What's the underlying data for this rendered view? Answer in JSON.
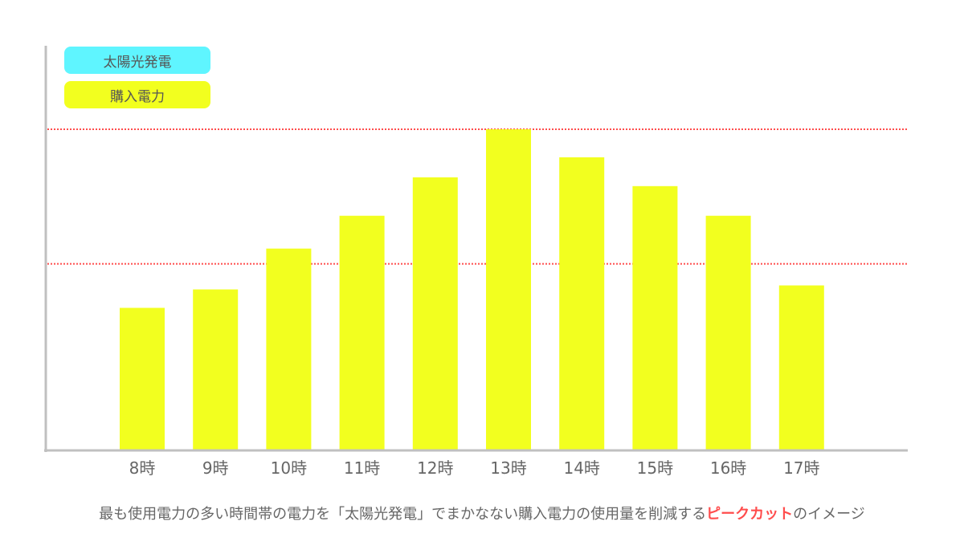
{
  "chart_data": {
    "type": "bar",
    "title": "",
    "xlabel": "",
    "ylabel": "",
    "categories": [
      "8時",
      "9時",
      "10時",
      "11時",
      "12時",
      "13時",
      "14時",
      "15時",
      "16時",
      "17時"
    ],
    "series": [
      {
        "name": "購入電力",
        "values": [
          177,
          200,
          251,
          292,
          340,
          400,
          365,
          329,
          292,
          205
        ],
        "color": "#f2ff1f"
      }
    ],
    "legend": [
      {
        "label": "太陽光発電",
        "color": "#5ff5ff"
      },
      {
        "label": "購入電力",
        "color": "#f2ff1f"
      }
    ],
    "reference_lines": [
      {
        "value": 400,
        "color": "#ff4d4d",
        "style": "dotted"
      },
      {
        "value": 232,
        "color": "#ff4d4d",
        "style": "dotted"
      }
    ],
    "ylim": [
      0,
      400
    ],
    "grid": false,
    "legend_position": "top-left",
    "axis_color": "#c0c0c0"
  },
  "caption": {
    "prefix": "最も使用電力の多い時間帯の電力を「太陽光発電」でまかなない購入電力の使用量を削減する",
    "highlight": "ピークカット",
    "suffix": "のイメージ",
    "highlight_color": "#ff4d4d"
  }
}
